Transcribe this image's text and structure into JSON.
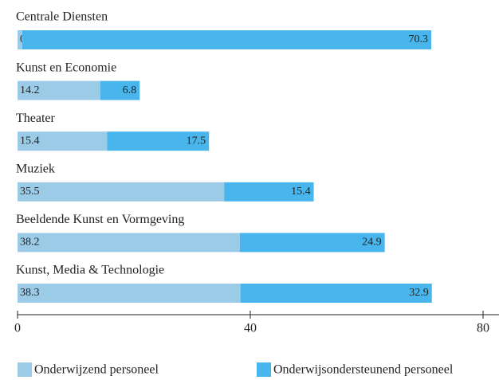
{
  "chart_data": {
    "type": "stacked-bar-horizontal",
    "categories": [
      "Centrale Diensten",
      "Kunst en Economie",
      "Theater",
      "Muziek",
      "Beeldende Kunst en Vormgeving",
      "Kunst, Media & Technologie"
    ],
    "series": [
      {
        "name": "Onderwijzend personeel",
        "color": "#9ccbe8",
        "values": [
          0.8,
          14.2,
          15.4,
          35.5,
          38.2,
          38.3
        ]
      },
      {
        "name": "Onderwijsondersteunend personeel",
        "color": "#48b6ec",
        "values": [
          70.3,
          6.8,
          17.5,
          15.4,
          24.9,
          32.9
        ]
      }
    ],
    "xlim": [
      0,
      80
    ],
    "xticks": [
      0,
      40,
      80
    ]
  }
}
